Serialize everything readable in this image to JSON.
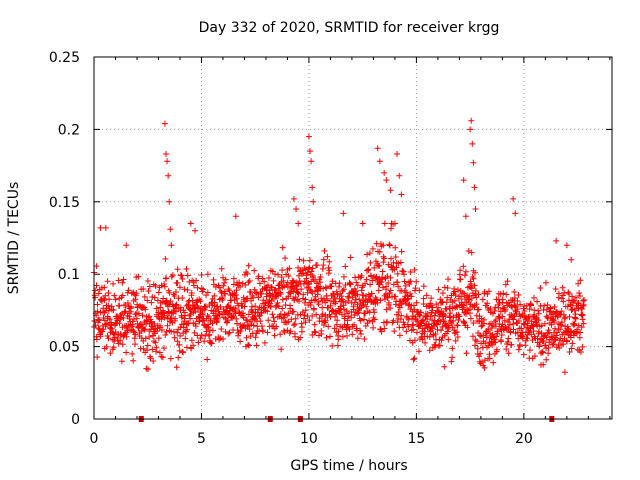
{
  "chart_data": {
    "type": "scatter",
    "title": "Day 332 of 2020, SRMTID for receiver krgg",
    "xlabel": "GPS time / hours",
    "ylabel": "SRMTID / TECUs",
    "xlim": [
      0,
      24.1
    ],
    "ylim": [
      0,
      0.25
    ],
    "x_ticks": [
      0,
      5,
      10,
      15,
      20
    ],
    "x_tick_labels": [
      "0",
      "5",
      "10",
      "15",
      "20"
    ],
    "y_ticks": [
      0,
      0.05,
      0.1,
      0.15,
      0.2,
      0.25
    ],
    "y_tick_labels": [
      "0",
      "0.05",
      "0.1",
      "0.15",
      "0.2",
      "0.25"
    ],
    "grid": true,
    "marker": "+",
    "color": "#ff0000",
    "gap_marker_color": "#cc0000",
    "series": [
      {
        "name": "SRMTID",
        "profile_hours": [
          0.0,
          0.5,
          1.0,
          1.5,
          2.0,
          2.5,
          3.0,
          3.5,
          4.0,
          4.5,
          5.0,
          5.5,
          6.0,
          6.5,
          7.0,
          7.5,
          8.0,
          8.5,
          9.0,
          9.5,
          10.0,
          10.5,
          11.0,
          11.5,
          12.0,
          12.5,
          13.0,
          13.5,
          14.0,
          14.5,
          15.0,
          15.5,
          16.0,
          16.5,
          17.0,
          17.5,
          18.0,
          18.5,
          19.0,
          19.5,
          20.0,
          20.5,
          21.0,
          21.5,
          22.0,
          22.5
        ],
        "profile_mean": [
          0.075,
          0.07,
          0.068,
          0.066,
          0.07,
          0.065,
          0.072,
          0.074,
          0.075,
          0.078,
          0.07,
          0.072,
          0.078,
          0.077,
          0.076,
          0.073,
          0.078,
          0.082,
          0.083,
          0.085,
          0.088,
          0.085,
          0.076,
          0.078,
          0.08,
          0.083,
          0.09,
          0.096,
          0.1,
          0.078,
          0.073,
          0.069,
          0.068,
          0.07,
          0.078,
          0.083,
          0.067,
          0.062,
          0.07,
          0.073,
          0.06,
          0.062,
          0.061,
          0.064,
          0.068,
          0.07
        ],
        "profile_spread": [
          0.025,
          0.025,
          0.022,
          0.022,
          0.025,
          0.026,
          0.028,
          0.03,
          0.028,
          0.026,
          0.022,
          0.022,
          0.02,
          0.02,
          0.02,
          0.021,
          0.021,
          0.022,
          0.023,
          0.024,
          0.028,
          0.024,
          0.022,
          0.022,
          0.023,
          0.025,
          0.03,
          0.035,
          0.035,
          0.025,
          0.023,
          0.022,
          0.021,
          0.022,
          0.026,
          0.03,
          0.025,
          0.022,
          0.022,
          0.022,
          0.02,
          0.02,
          0.02,
          0.02,
          0.02,
          0.02
        ],
        "outliers": [
          [
            0.3,
            0.132
          ],
          [
            0.55,
            0.132
          ],
          [
            1.5,
            0.12
          ],
          [
            3.3,
            0.204
          ],
          [
            3.35,
            0.183
          ],
          [
            3.4,
            0.178
          ],
          [
            3.45,
            0.168
          ],
          [
            3.5,
            0.15
          ],
          [
            3.55,
            0.131
          ],
          [
            3.6,
            0.12
          ],
          [
            4.5,
            0.135
          ],
          [
            4.7,
            0.13
          ],
          [
            6.6,
            0.14
          ],
          [
            9.3,
            0.152
          ],
          [
            9.4,
            0.145
          ],
          [
            9.5,
            0.135
          ],
          [
            10.0,
            0.195
          ],
          [
            10.05,
            0.185
          ],
          [
            10.1,
            0.178
          ],
          [
            10.15,
            0.16
          ],
          [
            10.2,
            0.15
          ],
          [
            11.6,
            0.142
          ],
          [
            12.5,
            0.135
          ],
          [
            13.2,
            0.187
          ],
          [
            13.3,
            0.178
          ],
          [
            13.5,
            0.17
          ],
          [
            13.6,
            0.165
          ],
          [
            13.8,
            0.158
          ],
          [
            14.1,
            0.183
          ],
          [
            14.2,
            0.168
          ],
          [
            14.3,
            0.155
          ],
          [
            17.5,
            0.2
          ],
          [
            17.55,
            0.206
          ],
          [
            17.6,
            0.19
          ],
          [
            17.65,
            0.177
          ],
          [
            17.7,
            0.16
          ],
          [
            17.75,
            0.145
          ],
          [
            17.2,
            0.165
          ],
          [
            17.3,
            0.14
          ],
          [
            19.5,
            0.152
          ],
          [
            19.6,
            0.142
          ],
          [
            21.5,
            0.123
          ],
          [
            22.0,
            0.12
          ],
          [
            22.2,
            0.11
          ]
        ],
        "start_hour": 0.0,
        "end_hour": 22.8,
        "point_count": 2000
      }
    ],
    "gap_markers": [
      2.2,
      8.2,
      9.6,
      21.3
    ]
  }
}
